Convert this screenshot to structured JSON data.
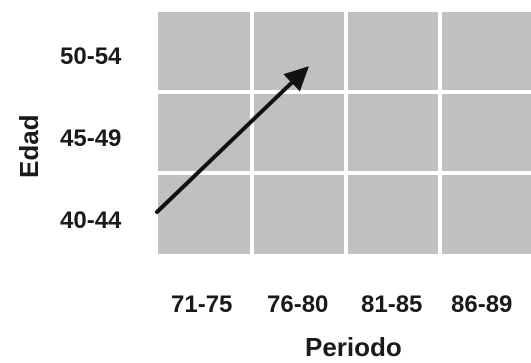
{
  "diagram": {
    "y_axis_title": "Edad",
    "x_axis_title": "Periodo",
    "rows": [
      "50-54",
      "45-49",
      "40-44"
    ],
    "columns": [
      "71-75",
      "76-80",
      "81-85",
      "86-89"
    ],
    "cell_color": "#c0c0c0",
    "grid_line_color": "#ffffff",
    "text_color": "#1a1a1a",
    "arrow_color": "#111111",
    "arrow": {
      "from": {
        "row": "40-44",
        "column": "71-75"
      },
      "to": {
        "row": "50-54",
        "column": "76-80"
      }
    }
  }
}
